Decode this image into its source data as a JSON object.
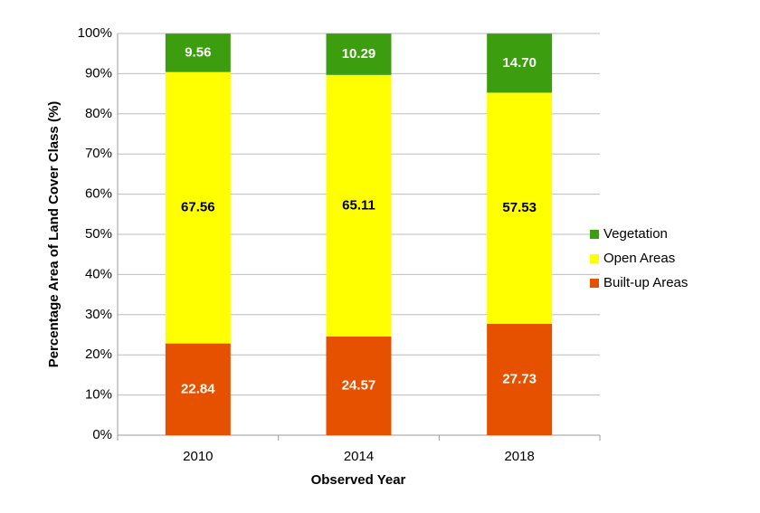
{
  "chart_data": {
    "type": "stacked-bar",
    "x_label": "Observed Year",
    "y_label": "Percentage Area of Land Cover Class (%)",
    "categories": [
      "2010",
      "2014",
      "2018"
    ],
    "series": [
      {
        "name": "Built-up Areas",
        "color": "#e65100",
        "values": [
          22.84,
          24.57,
          27.73
        ],
        "value_labels": [
          "22.84",
          "24.57",
          "27.73"
        ]
      },
      {
        "name": "Open Areas",
        "color": "#ffff00",
        "values": [
          67.56,
          65.11,
          57.53
        ],
        "value_labels": [
          "67.56",
          "65.11",
          "57.53"
        ]
      },
      {
        "name": "Vegetation",
        "color": "#3c9e0f",
        "values": [
          9.56,
          10.29,
          14.7
        ],
        "value_labels": [
          "9.56",
          "10.29",
          "14.70"
        ]
      }
    ],
    "ylim": [
      0,
      100
    ],
    "yticks": [
      {
        "value": 0,
        "label": "0%"
      },
      {
        "value": 10,
        "label": "10%"
      },
      {
        "value": 20,
        "label": "20%"
      },
      {
        "value": 30,
        "label": "30%"
      },
      {
        "value": 40,
        "label": "40%"
      },
      {
        "value": 50,
        "label": "50%"
      },
      {
        "value": 60,
        "label": "60%"
      },
      {
        "value": 70,
        "label": "70%"
      },
      {
        "value": 80,
        "label": "80%"
      },
      {
        "value": 90,
        "label": "90%"
      },
      {
        "value": 100,
        "label": "100%"
      }
    ],
    "grid": true,
    "legend": "right"
  }
}
